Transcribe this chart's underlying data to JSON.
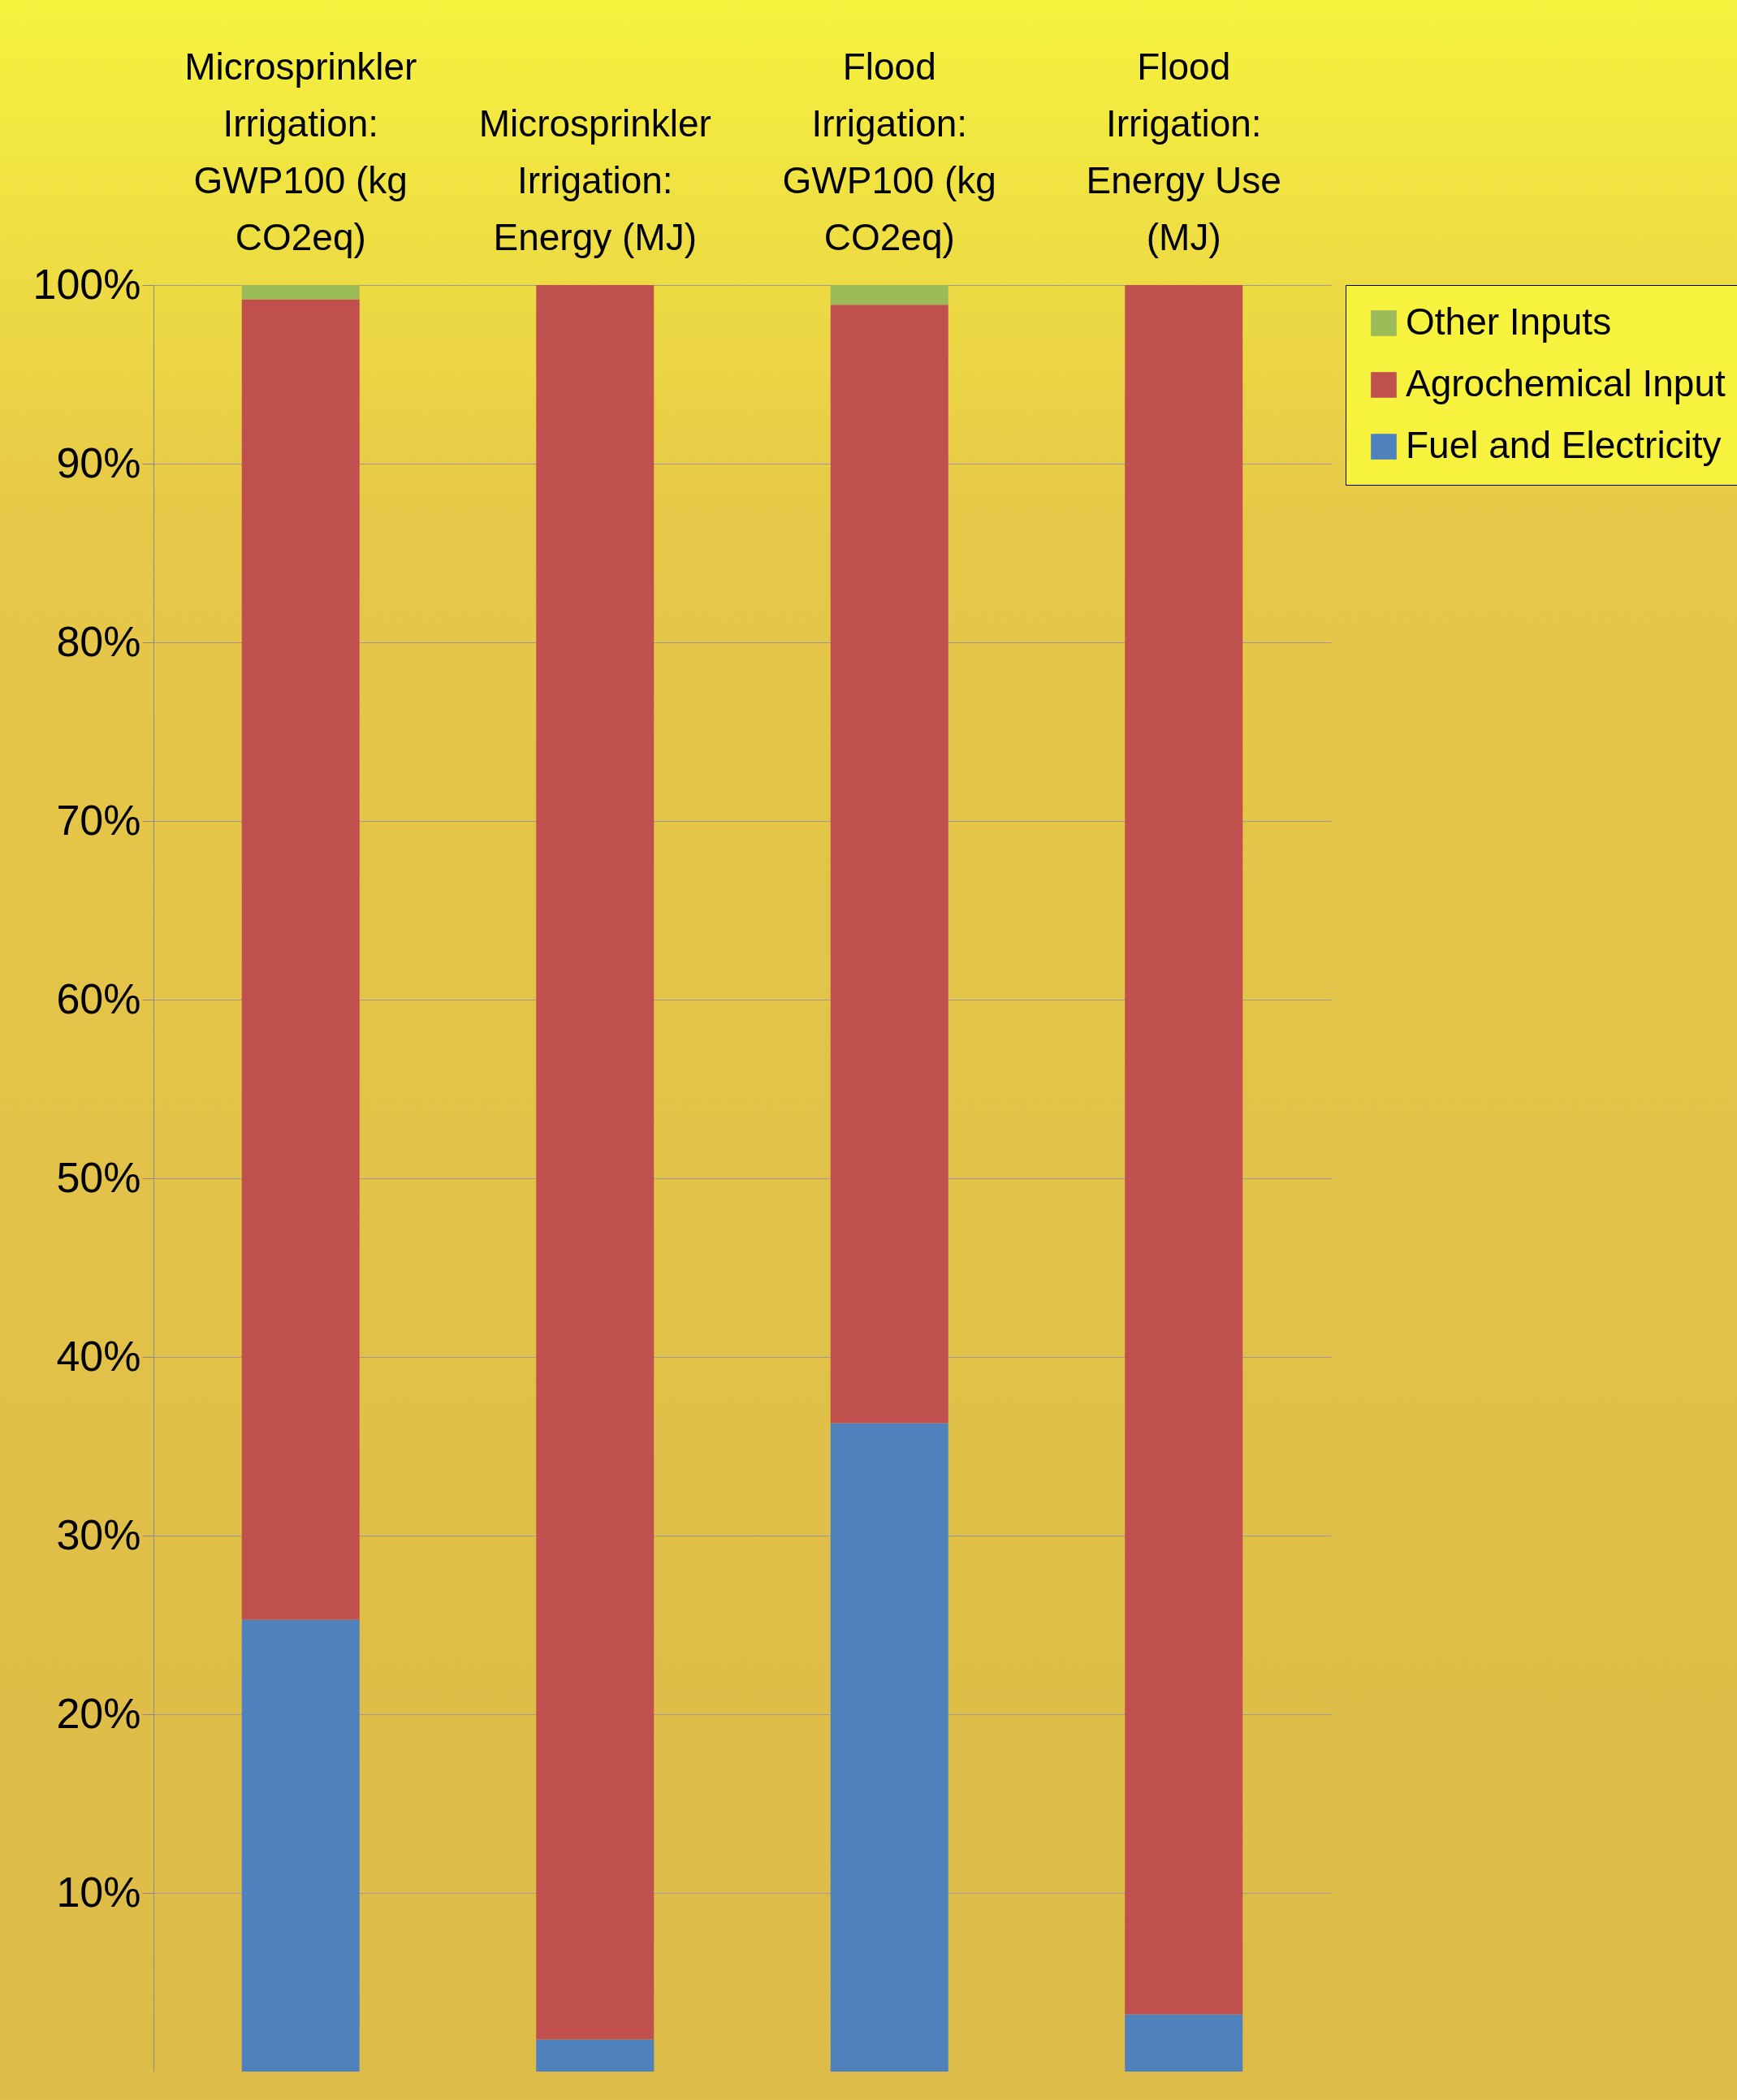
{
  "chart_data": {
    "type": "bar",
    "stacked": true,
    "categories": [
      "Microsprinkler Irrigation: GWP100 (kg CO2eq)",
      "Microsprinkler Irrigation: Energy (MJ)",
      "Flood Irrigation: GWP100 (kg CO2eq)",
      "Flood Irrigation: Energy Use (MJ)"
    ],
    "series": [
      {
        "name": "Fuel and Electricity",
        "color": "#4f81bd",
        "values": [
          25.3,
          1.8,
          36.3,
          3.2
        ]
      },
      {
        "name": "Agrochemical Input",
        "color": "#c0504d",
        "values": [
          73.9,
          98.2,
          62.6,
          96.8
        ]
      },
      {
        "name": "Other Inputs",
        "color": "#9bbb59",
        "values": [
          0.8,
          0,
          1.1,
          0
        ]
      }
    ],
    "ylim": [
      0,
      100
    ],
    "yticks": [
      {
        "value": 10,
        "label": "10%"
      },
      {
        "value": 20,
        "label": "20%"
      },
      {
        "value": 30,
        "label": "30%"
      },
      {
        "value": 40,
        "label": "40%"
      },
      {
        "value": 50,
        "label": "50%"
      },
      {
        "value": 60,
        "label": "60%"
      },
      {
        "value": 70,
        "label": "70%"
      },
      {
        "value": 80,
        "label": "80%"
      },
      {
        "value": 90,
        "label": "90%"
      },
      {
        "value": 100,
        "label": "100%"
      }
    ],
    "grid": "y",
    "legend": "right"
  }
}
